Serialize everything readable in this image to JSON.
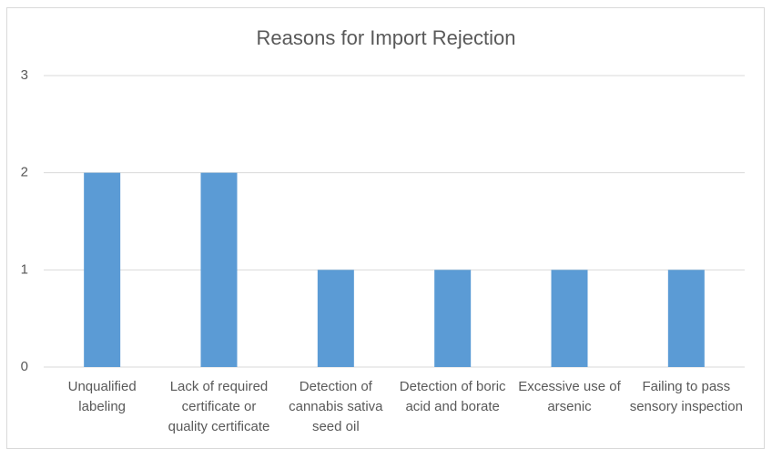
{
  "chart_data": {
    "type": "bar",
    "title": "Reasons for Import Rejection",
    "categories": [
      "Unqualified labeling",
      "Lack of required certificate or quality certificate",
      "Detection of cannabis sativa seed oil",
      "Detection of boric acid and borate",
      "Excessive use of arsenic",
      "Failing to pass sensory inspection"
    ],
    "values": [
      2,
      2,
      1,
      1,
      1,
      1
    ],
    "color": "#5b9bd5",
    "ylim": [
      0,
      3
    ],
    "yticks": [
      0,
      1,
      2,
      3
    ],
    "grid": true
  }
}
